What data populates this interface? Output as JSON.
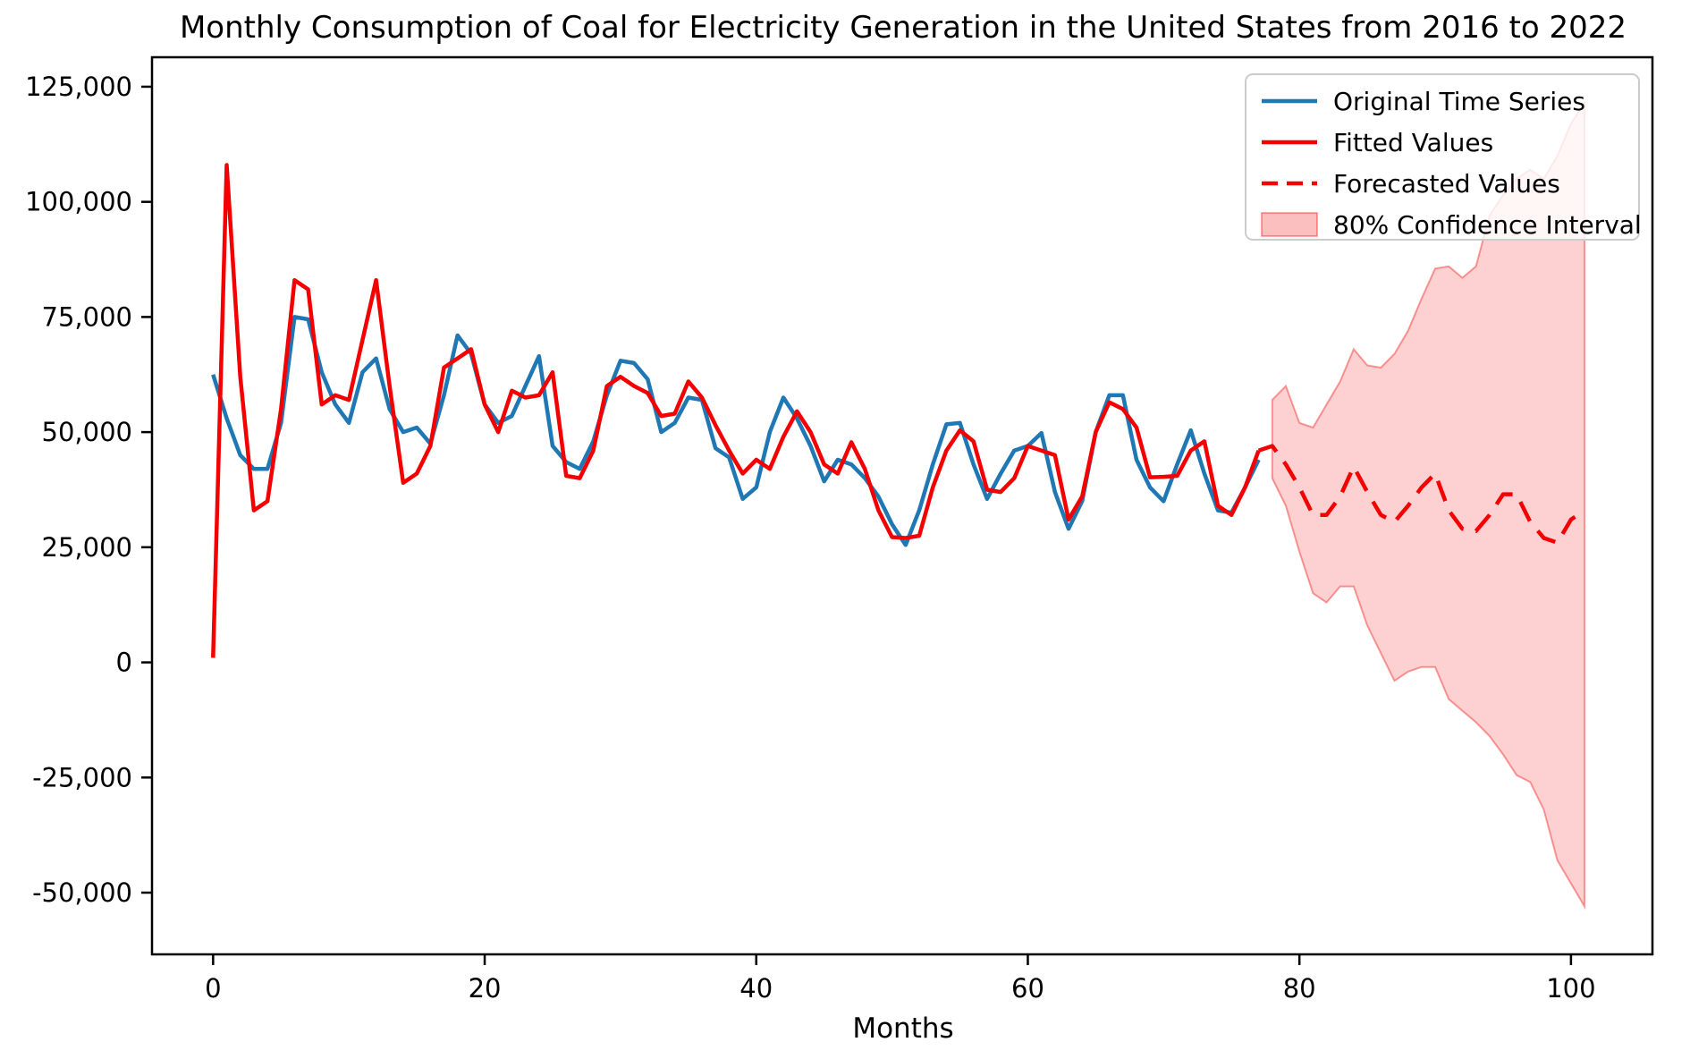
{
  "chart_data": {
    "type": "line",
    "title": "Monthly Consumption of Coal for Electricity Generation in the United States from 2016 to 2022",
    "xlabel": "Months",
    "ylabel": "",
    "grid": false,
    "legend_position": "upper right",
    "xlim": [
      -4.5,
      106
    ],
    "ylim": [
      -63400,
      131400
    ],
    "x_ticks": [
      {
        "value": 0,
        "label": "0"
      },
      {
        "value": 20,
        "label": "20"
      },
      {
        "value": 40,
        "label": "40"
      },
      {
        "value": 60,
        "label": "60"
      },
      {
        "value": 80,
        "label": "80"
      },
      {
        "value": 100,
        "label": "100"
      }
    ],
    "y_ticks": [
      {
        "value": 125000,
        "label": "125,000"
      },
      {
        "value": 100000,
        "label": "100,000"
      },
      {
        "value": 75000,
        "label": "75,000"
      },
      {
        "value": 50000,
        "label": "50,000"
      },
      {
        "value": 25000,
        "label": "25,000"
      },
      {
        "value": 0,
        "label": "0"
      },
      {
        "value": -25000,
        "label": "-25,000"
      },
      {
        "value": -50000,
        "label": "-50,000"
      }
    ],
    "colors": {
      "original": "#1f77b4",
      "fitted": "#f40000",
      "forecast": "#f40000",
      "ci_fill": "rgba(244,0,0,0.18)",
      "ci_edge": "rgba(244,0,0,0.38)"
    },
    "legend": [
      {
        "label": "Original Time Series",
        "marker": "solid-line",
        "color": "#1f77b4"
      },
      {
        "label": "Fitted Values",
        "marker": "solid-line",
        "color": "#f40000"
      },
      {
        "label": "Forecasted Values",
        "marker": "dashed-line",
        "color": "#f40000"
      },
      {
        "label": "80% Confidence Interval",
        "marker": "patch",
        "color": "rgba(244,0,0,0.25)"
      }
    ],
    "series": [
      {
        "name": "Original Time Series",
        "style": "solid",
        "color_key": "original",
        "x_start": 0,
        "values": [
          62500,
          53000,
          45000,
          42000,
          42000,
          52000,
          75000,
          74500,
          63000,
          56000,
          52000,
          63000,
          66000,
          55000,
          50000,
          51000,
          47500,
          58000,
          71000,
          67000,
          56000,
          52000,
          53500,
          60000,
          66500,
          47000,
          43500,
          42000,
          48000,
          58000,
          65500,
          65000,
          61500,
          50000,
          52000,
          57500,
          57000,
          46500,
          44500,
          35500,
          38000,
          50000,
          57500,
          53000,
          47000,
          39300,
          44000,
          43000,
          40000,
          36000,
          30000,
          25500,
          33000,
          43000,
          51700,
          52000,
          43000,
          35500,
          41000,
          46000,
          47000,
          49800,
          37000,
          29000,
          35000,
          50000,
          58000,
          58000,
          44000,
          38000,
          35000,
          43000,
          50400,
          41000,
          33000,
          32500,
          38000,
          44000
        ]
      },
      {
        "name": "Fitted Values",
        "style": "solid",
        "color_key": "fitted",
        "x_start": 0,
        "values": [
          1000,
          108000,
          62000,
          33000,
          35000,
          55000,
          83000,
          81000,
          56000,
          58000,
          57000,
          70000,
          83000,
          60000,
          39000,
          41000,
          47000,
          64000,
          66000,
          68000,
          56000,
          50000,
          59000,
          57500,
          58000,
          63000,
          40500,
          40000,
          46000,
          60000,
          62000,
          60000,
          58500,
          53500,
          54000,
          61000,
          57500,
          51500,
          46000,
          41000,
          44000,
          42000,
          49000,
          54500,
          50000,
          43000,
          41000,
          47800,
          42000,
          33000,
          27200,
          27000,
          27500,
          38000,
          46000,
          50400,
          48000,
          37500,
          37000,
          40000,
          47000,
          46000,
          45000,
          31000,
          36000,
          50000,
          56500,
          55000,
          51000,
          40200,
          40300,
          40500,
          46000,
          48000,
          34000,
          32000,
          38000,
          46000
        ]
      },
      {
        "name": "Forecasted Values",
        "style": "dashed",
        "color_key": "forecast",
        "x_start": 78,
        "values": [
          47000,
          43000,
          38000,
          32000,
          32000,
          36000,
          42500,
          37000,
          32000,
          30500,
          34000,
          38000,
          41000,
          33000,
          29000,
          28500,
          32000,
          36500,
          36500,
          30500,
          27000,
          26000,
          31000,
          33000
        ]
      }
    ],
    "confidence_interval": {
      "name": "80% Confidence Interval",
      "x_start": 78,
      "upper": [
        57000,
        60000,
        52000,
        51000,
        56000,
        61000,
        68000,
        64500,
        64000,
        67000,
        72000,
        79000,
        85500,
        86000,
        83500,
        86000,
        97000,
        101500,
        105000,
        107000,
        105000,
        110000,
        117000,
        121500
      ],
      "lower": [
        40000,
        34000,
        24000,
        15000,
        13000,
        16500,
        16500,
        8000,
        2000,
        -4000,
        -2000,
        -1000,
        -1000,
        -8000,
        -10500,
        -13000,
        -16000,
        -20000,
        -24500,
        -26000,
        -32000,
        -43000,
        -48000,
        -53000
      ]
    }
  }
}
